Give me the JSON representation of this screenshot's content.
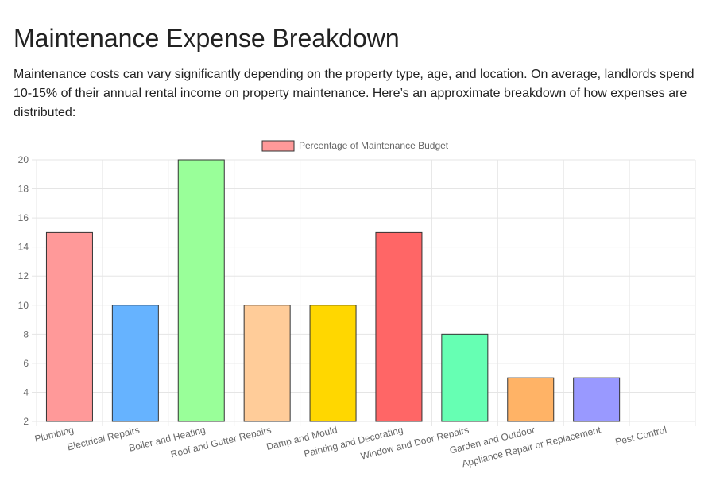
{
  "page": {
    "title": "Maintenance Expense Breakdown",
    "intro": "Maintenance costs can vary significantly depending on the property type, age, and location. On average, landlords spend 10-15% of their annual rental income on property maintenance. Here’s an approximate breakdown of how expenses are distributed:"
  },
  "chart_data": {
    "type": "bar",
    "categories": [
      "Plumbing",
      "Electrical Repairs",
      "Boiler and Heating",
      "Roof and Gutter Repairs",
      "Damp and Mould",
      "Painting and Decorating",
      "Window and Door Repairs",
      "Garden and Outdoor",
      "Appliance Repair or Replacement",
      "Pest Control"
    ],
    "series": [
      {
        "name": "Percentage of Maintenance Budget",
        "values": [
          15,
          10,
          20,
          10,
          10,
          15,
          8,
          5,
          5,
          2
        ],
        "colors": [
          "#ff9999",
          "#66b3ff",
          "#99ff99",
          "#ffcc99",
          "#ffd700",
          "#ff6666",
          "#66ffb3",
          "#ffb366",
          "#9999ff",
          "#ff99cc"
        ],
        "border_color": "#333333"
      }
    ],
    "legend_color": "#ff9999",
    "ylim": [
      2,
      20
    ],
    "yticks": [
      2,
      4,
      6,
      8,
      10,
      12,
      14,
      16,
      18,
      20
    ],
    "grid": true,
    "legend_position": "top-center",
    "title": "",
    "xlabel": "",
    "ylabel": ""
  }
}
